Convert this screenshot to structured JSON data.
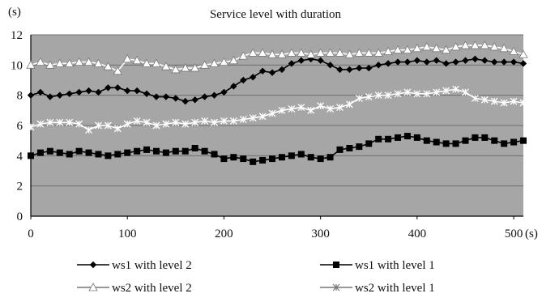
{
  "chart_data": {
    "type": "line",
    "title": "Service level with duration",
    "ylabel": "(s)",
    "xunit": "(s)",
    "xlim": [
      0,
      510
    ],
    "ylim": [
      0,
      12
    ],
    "xticks": [
      0,
      100,
      200,
      300,
      400,
      500
    ],
    "yticks": [
      0,
      2,
      4,
      6,
      8,
      10,
      12
    ],
    "grid": true,
    "legend_position": "bottom",
    "x": [
      0,
      10,
      20,
      30,
      40,
      50,
      60,
      70,
      80,
      90,
      100,
      110,
      120,
      130,
      140,
      150,
      160,
      170,
      180,
      190,
      200,
      210,
      220,
      230,
      240,
      250,
      260,
      270,
      280,
      290,
      300,
      310,
      320,
      330,
      340,
      350,
      360,
      370,
      380,
      390,
      400,
      410,
      420,
      430,
      440,
      450,
      460,
      470,
      480,
      490,
      500,
      510
    ],
    "series": [
      {
        "name": "ws1 with level 2",
        "color": "#000000",
        "marker": "diamond",
        "values": [
          8.0,
          8.2,
          7.9,
          8.0,
          8.1,
          8.2,
          8.3,
          8.2,
          8.5,
          8.5,
          8.3,
          8.3,
          8.1,
          7.9,
          7.9,
          7.8,
          7.6,
          7.7,
          7.9,
          8.0,
          8.2,
          8.6,
          9.0,
          9.2,
          9.6,
          9.5,
          9.7,
          10.1,
          10.3,
          10.4,
          10.3,
          10.0,
          9.7,
          9.7,
          9.8,
          9.8,
          10.0,
          10.1,
          10.2,
          10.2,
          10.3,
          10.2,
          10.3,
          10.1,
          10.2,
          10.3,
          10.4,
          10.3,
          10.2,
          10.2,
          10.2,
          10.1
        ]
      },
      {
        "name": "ws1 with level 1",
        "color": "#000000",
        "marker": "square",
        "values": [
          4.0,
          4.2,
          4.3,
          4.2,
          4.1,
          4.3,
          4.2,
          4.1,
          4.0,
          4.1,
          4.2,
          4.3,
          4.4,
          4.3,
          4.2,
          4.3,
          4.3,
          4.5,
          4.3,
          4.1,
          3.8,
          3.9,
          3.8,
          3.6,
          3.7,
          3.8,
          3.9,
          4.0,
          4.1,
          3.9,
          3.8,
          3.9,
          4.4,
          4.5,
          4.6,
          4.8,
          5.1,
          5.1,
          5.2,
          5.3,
          5.2,
          5.0,
          4.9,
          4.8,
          4.8,
          5.0,
          5.2,
          5.2,
          5.0,
          4.8,
          4.9,
          5.0
        ]
      },
      {
        "name": "ws2 with level 2",
        "color": "#000000",
        "marker": "triangle",
        "values": [
          10.0,
          10.2,
          10.0,
          10.1,
          10.1,
          10.2,
          10.2,
          10.1,
          9.9,
          9.6,
          10.4,
          10.3,
          10.1,
          10.1,
          9.9,
          9.7,
          9.8,
          9.8,
          10.0,
          10.1,
          10.2,
          10.3,
          10.6,
          10.8,
          10.8,
          10.7,
          10.7,
          10.8,
          10.8,
          10.7,
          10.8,
          10.8,
          10.8,
          10.7,
          10.8,
          10.8,
          10.8,
          10.9,
          11.0,
          11.0,
          11.1,
          11.2,
          11.1,
          11.0,
          11.2,
          11.3,
          11.3,
          11.3,
          11.2,
          11.1,
          10.9,
          10.7
        ]
      },
      {
        "name": "ws2 with level 1",
        "color": "#000000",
        "marker": "star",
        "values": [
          5.9,
          6.1,
          6.2,
          6.2,
          6.2,
          6.1,
          5.7,
          6.0,
          6.0,
          5.8,
          6.1,
          6.3,
          6.2,
          6.0,
          6.1,
          6.2,
          6.1,
          6.2,
          6.3,
          6.2,
          6.3,
          6.3,
          6.4,
          6.5,
          6.6,
          6.8,
          7.0,
          7.1,
          7.2,
          7.0,
          7.3,
          7.1,
          7.2,
          7.4,
          7.8,
          7.9,
          8.0,
          8.0,
          8.1,
          8.2,
          8.1,
          8.1,
          8.2,
          8.3,
          8.4,
          8.2,
          7.8,
          7.7,
          7.6,
          7.5,
          7.6,
          7.5
        ]
      }
    ]
  }
}
